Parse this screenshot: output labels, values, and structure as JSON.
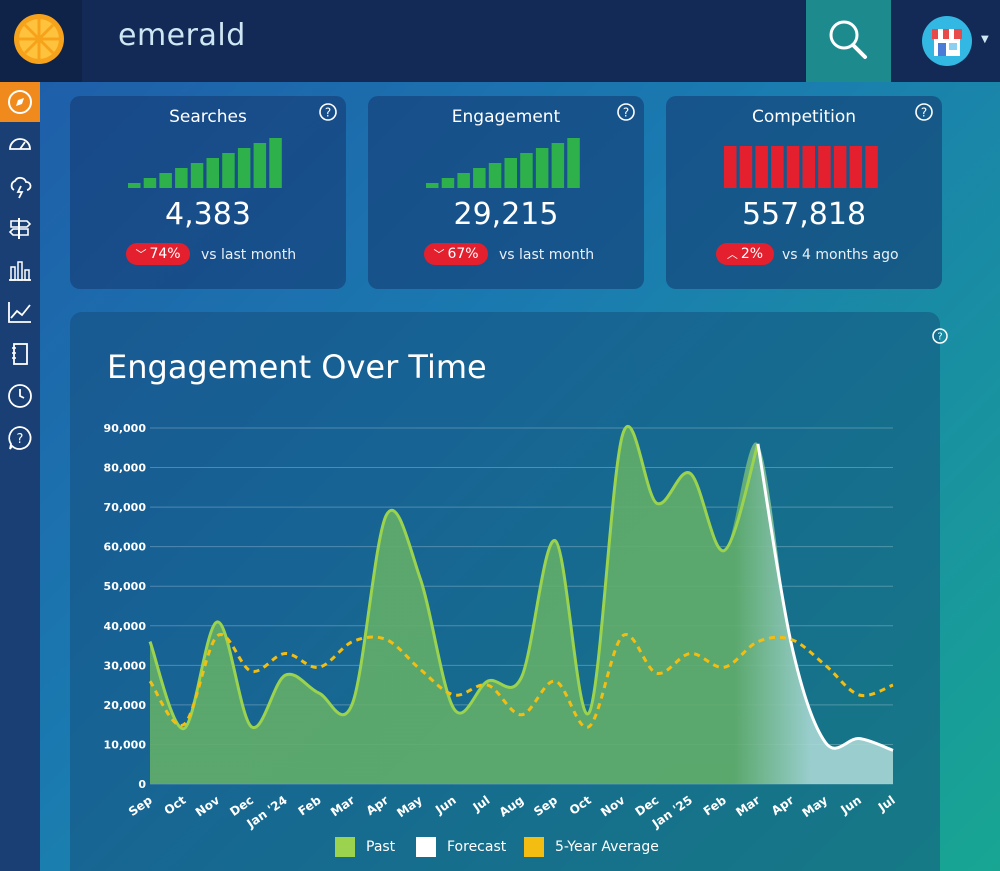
{
  "header": {
    "query": "emerald",
    "logo_icon": "orange-slice-icon",
    "search_icon": "magnifier-icon",
    "avatar_icon": "storefront-icon"
  },
  "sidebar": {
    "items": [
      {
        "icon": "compass-icon",
        "active": true
      },
      {
        "icon": "speedometer-icon",
        "active": false
      },
      {
        "icon": "cloud-lightning-icon",
        "active": false
      },
      {
        "icon": "signpost-icon",
        "active": false
      },
      {
        "icon": "bar-chart-icon",
        "active": false
      },
      {
        "icon": "line-chart-icon",
        "active": false
      },
      {
        "icon": "notebook-icon",
        "active": false
      },
      {
        "icon": "clock-icon",
        "active": false
      },
      {
        "icon": "help-bubble-icon",
        "active": false
      }
    ]
  },
  "cards": [
    {
      "title": "Searches",
      "value": "4,383",
      "change": "74%",
      "direction": "down",
      "comparison": "vs last month",
      "bars": [
        1,
        2,
        3,
        4,
        5,
        6,
        7,
        8,
        9,
        10
      ],
      "bar_color": "#2eb14a"
    },
    {
      "title": "Engagement",
      "value": "29,215",
      "change": "67%",
      "direction": "down",
      "comparison": "vs last month",
      "bars": [
        1,
        2,
        3,
        4,
        5,
        6,
        7,
        8,
        9,
        10
      ],
      "bar_color": "#2eb14a"
    },
    {
      "title": "Competition",
      "value": "557,818",
      "change": "2%",
      "direction": "up",
      "comparison": "vs 4 months ago",
      "bars": [
        1,
        1,
        1,
        1,
        1,
        1,
        1,
        1,
        1,
        1
      ],
      "bar_color": "#e4202f"
    }
  ],
  "colors": {
    "past": "#9bd34e",
    "forecast": "#ffffff",
    "average": "#f3bd12",
    "badge": "#e4202f"
  },
  "chart_data": {
    "type": "area",
    "title": "Engagement Over Time",
    "categories": [
      "Sep",
      "Oct",
      "Nov",
      "Dec",
      "Jan '24",
      "Feb",
      "Mar",
      "Apr",
      "May",
      "Jun",
      "Jul",
      "Aug",
      "Sep",
      "Oct",
      "Nov",
      "Dec",
      "Jan '25",
      "Feb",
      "Mar",
      "Apr",
      "May",
      "Jun",
      "Jul"
    ],
    "ylim": [
      0,
      90000
    ],
    "yticks": [
      0,
      10000,
      20000,
      30000,
      40000,
      50000,
      60000,
      70000,
      80000,
      90000
    ],
    "ytick_labels": [
      "0",
      "10,000",
      "20,000",
      "30,000",
      "40,000",
      "50,000",
      "60,000",
      "70,000",
      "80,000",
      "90,000"
    ],
    "series": [
      {
        "name": "Past",
        "values": [
          36000,
          14000,
          41000,
          14500,
          27500,
          23000,
          20500,
          68000,
          52000,
          19000,
          26000,
          27000,
          61500,
          18000,
          88500,
          71000,
          78500,
          59000,
          86000,
          null,
          null,
          null,
          null
        ]
      },
      {
        "name": "Forecast",
        "values": [
          null,
          null,
          null,
          null,
          null,
          null,
          null,
          null,
          null,
          null,
          null,
          null,
          null,
          null,
          null,
          null,
          null,
          null,
          86000,
          35000,
          10500,
          11500,
          8500
        ]
      },
      {
        "name": "5-Year Average",
        "values": [
          26000,
          15000,
          37500,
          28500,
          33000,
          29500,
          36000,
          36500,
          29000,
          22500,
          25000,
          17500,
          26000,
          14500,
          37500,
          28000,
          33000,
          29500,
          36000,
          36500,
          30000,
          22500,
          25000
        ]
      }
    ],
    "legend_position": "bottom",
    "grid": true
  }
}
